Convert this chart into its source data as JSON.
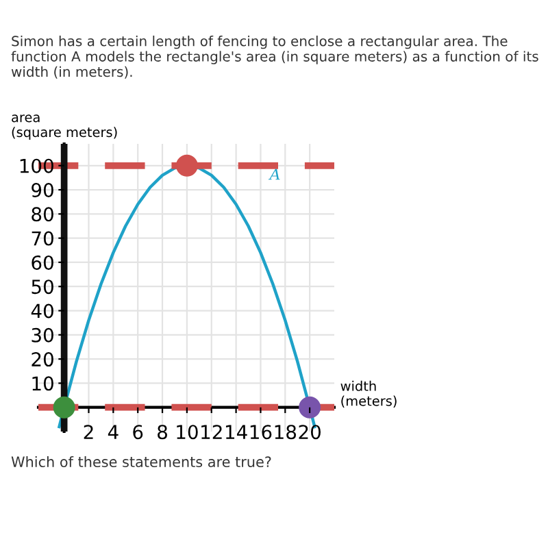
{
  "chart_data": {
    "type": "line",
    "title": "Simon has a certain length of fencing to enclose a rectangular area. The function A models the rectangle's area (in square meters) as a function of its width (in meters).",
    "xlabel": "width\n(meters)",
    "ylabel": "area\n(square meters)",
    "series": [
      {
        "name": "A",
        "color": "#1fa2c8",
        "marker": "none",
        "x": [
          -0.4,
          0,
          1,
          2,
          3,
          4,
          5,
          6,
          7,
          8,
          9,
          10,
          11,
          12,
          13,
          14,
          15,
          16,
          17,
          18,
          19,
          20,
          20.4
        ],
        "values": [
          -8,
          0,
          19,
          36,
          51,
          64,
          75,
          84,
          91,
          96,
          99,
          100,
          99,
          96,
          91,
          84,
          75,
          64,
          51,
          36,
          19,
          0,
          -8
        ]
      },
      {
        "type": "scatter",
        "marker": "circle",
        "x": [
          0,
          10,
          20
        ],
        "values": [
          0,
          100,
          0
        ],
        "colors": [
          "#3d8f3d",
          "#d0514f",
          "#7854ab"
        ]
      }
    ],
    "annotations": [
      "Which of these statements are true?"
    ],
    "ref_lines": [
      {
        "axis": "y",
        "value": 100,
        "color": "#d0514f",
        "line_style": "dashed"
      },
      {
        "axis": "y",
        "value": 0,
        "color": "#d0514f",
        "line_style": "dashed"
      },
      {
        "axis": "x",
        "value": 0,
        "color": "#111111",
        "line_style": "solid"
      }
    ],
    "xlim": [
      -2.1,
      22
    ],
    "ylim": [
      -10,
      109
    ],
    "xticks": [
      2,
      4,
      6,
      8,
      10,
      12,
      14,
      16,
      18,
      20
    ],
    "yticks": [
      10,
      20,
      30,
      40,
      50,
      60,
      70,
      80,
      90,
      100
    ],
    "grid": true,
    "line_style": "solid"
  }
}
